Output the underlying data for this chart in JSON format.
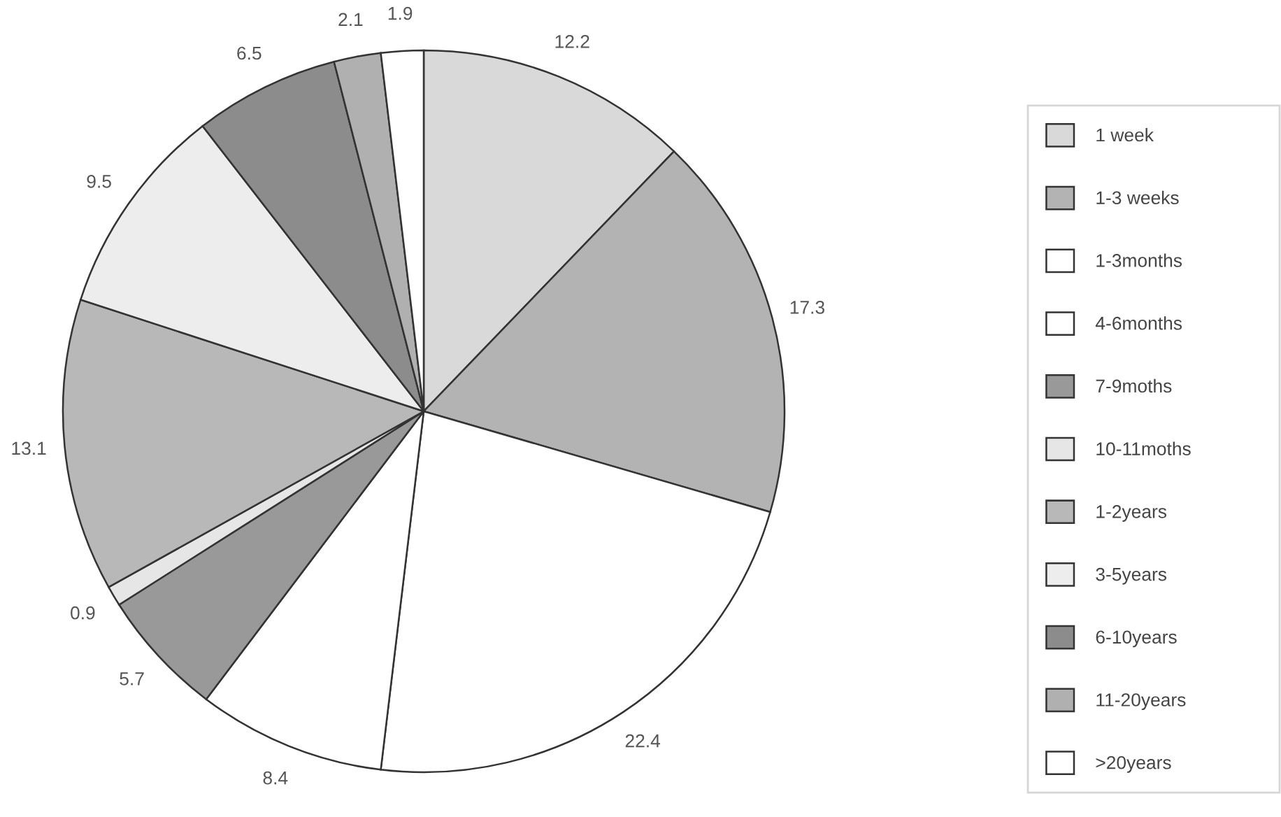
{
  "chart_data": {
    "type": "pie",
    "categories": [
      "1 week",
      "1-3 weeks",
      "1-3months",
      "4-6months",
      "7-9moths",
      "10-11moths",
      "1-2years",
      "3-5years",
      "6-10years",
      "11-20years",
      ">20years"
    ],
    "values": [
      12.2,
      17.3,
      22.4,
      8.4,
      5.7,
      0.9,
      13.1,
      9.5,
      6.5,
      2.1,
      1.9
    ],
    "colors": [
      "#d9d9d9",
      "#b3b3b3",
      "#ffffff",
      "#ffffff",
      "#999999",
      "#e6e6e6",
      "#b8b8b8",
      "#ededed",
      "#8c8c8c",
      "#b0b0b0",
      "#ffffff"
    ],
    "data_labels": true,
    "legend": "right"
  }
}
